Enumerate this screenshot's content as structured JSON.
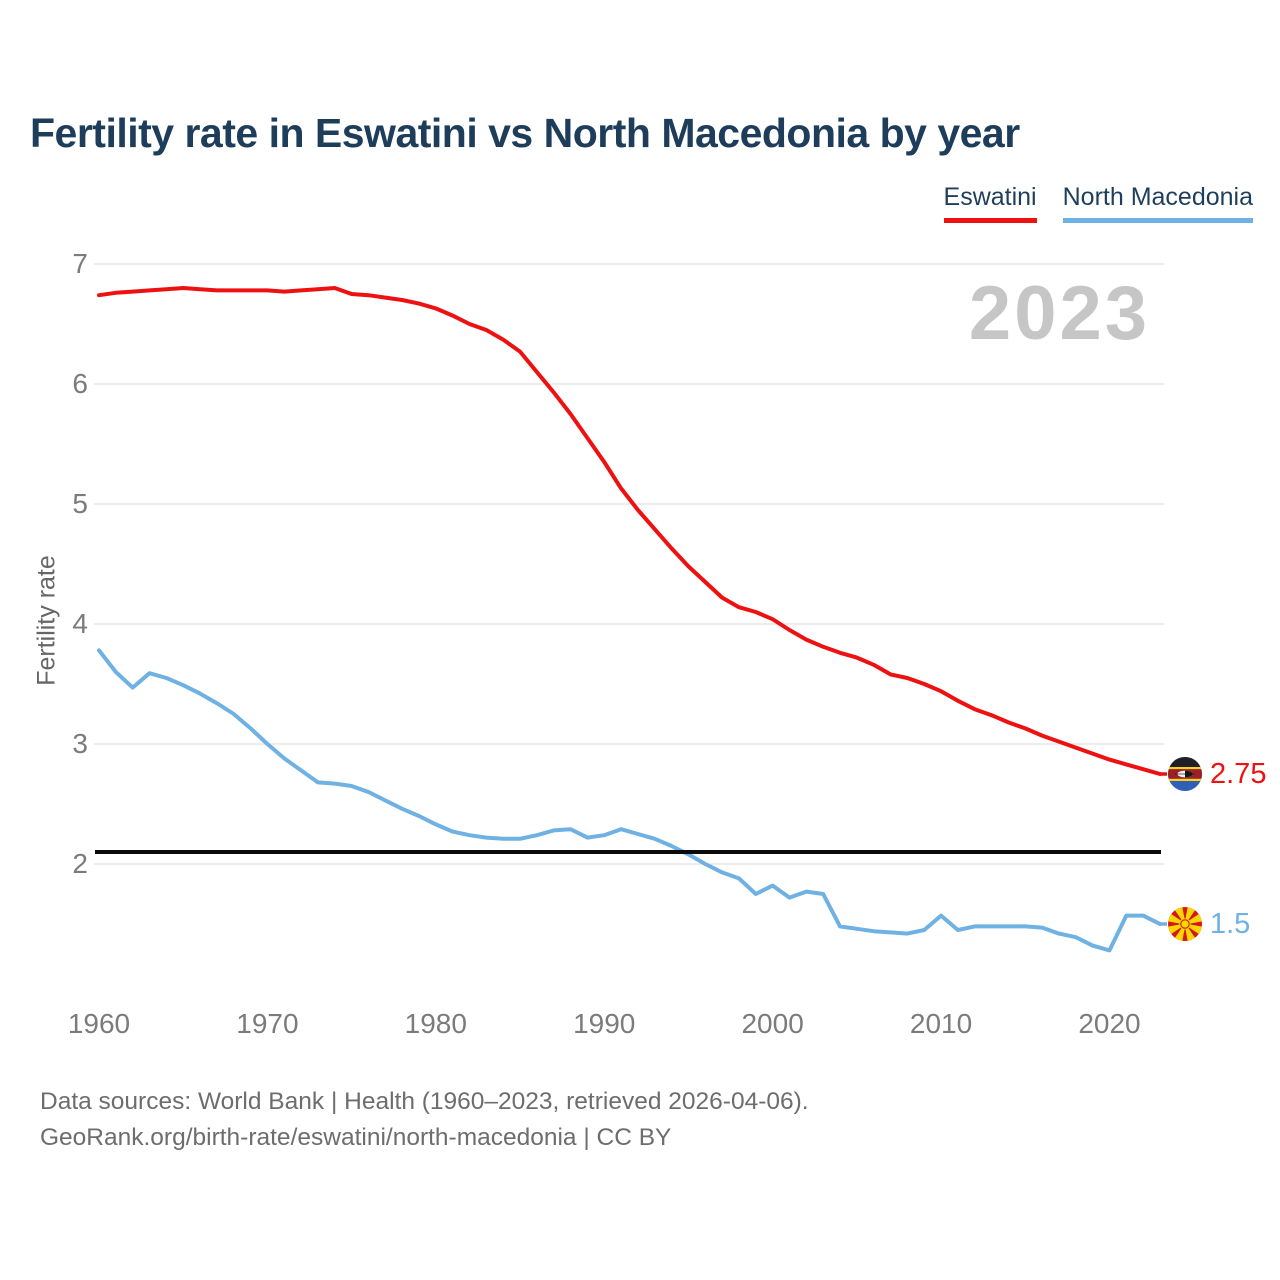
{
  "title": "Fertility rate in Eswatini vs North Macedonia by year",
  "watermark": "2023",
  "ylabel": "Fertility rate",
  "legend": [
    {
      "label": "Eswatini",
      "color": "#ed1111"
    },
    {
      "label": "North Macedonia",
      "color": "#6fb1e2"
    }
  ],
  "end_labels": [
    {
      "series": "Eswatini",
      "value": "2.75",
      "color": "#ed1111"
    },
    {
      "series": "North Macedonia",
      "value": "1.5",
      "color": "#6fb1e2"
    }
  ],
  "footer": {
    "line1": "Data sources: World Bank | Health (1960–2023, retrieved 2026-04-06).",
    "line2": "GeoRank.org/birth-rate/eswatini/north-macedonia | CC BY"
  },
  "chart_data": {
    "type": "line",
    "title": "Fertility rate in Eswatini vs North Macedonia by year",
    "xlabel": "",
    "ylabel": "Fertility rate",
    "x": [
      1960,
      1961,
      1962,
      1963,
      1964,
      1965,
      1966,
      1967,
      1968,
      1969,
      1970,
      1971,
      1972,
      1973,
      1974,
      1975,
      1976,
      1977,
      1978,
      1979,
      1980,
      1981,
      1982,
      1983,
      1984,
      1985,
      1986,
      1987,
      1988,
      1989,
      1990,
      1991,
      1992,
      1993,
      1994,
      1995,
      1996,
      1997,
      1998,
      1999,
      2000,
      2001,
      2002,
      2003,
      2004,
      2005,
      2006,
      2007,
      2008,
      2009,
      2010,
      2011,
      2012,
      2013,
      2014,
      2015,
      2016,
      2017,
      2018,
      2019,
      2020,
      2021,
      2022,
      2023
    ],
    "series": [
      {
        "name": "Eswatini",
        "color": "#ed1111",
        "values": [
          6.74,
          6.76,
          6.77,
          6.78,
          6.79,
          6.8,
          6.79,
          6.78,
          6.78,
          6.78,
          6.78,
          6.77,
          6.78,
          6.79,
          6.8,
          6.75,
          6.74,
          6.72,
          6.7,
          6.67,
          6.63,
          6.57,
          6.5,
          6.45,
          6.37,
          6.27,
          6.1,
          5.93,
          5.75,
          5.55,
          5.35,
          5.13,
          4.95,
          4.79,
          4.63,
          4.48,
          4.35,
          4.22,
          4.14,
          4.1,
          4.04,
          3.95,
          3.87,
          3.81,
          3.76,
          3.72,
          3.66,
          3.58,
          3.55,
          3.5,
          3.44,
          3.36,
          3.29,
          3.24,
          3.18,
          3.13,
          3.07,
          3.02,
          2.97,
          2.92,
          2.87,
          2.83,
          2.79,
          2.75
        ]
      },
      {
        "name": "North Macedonia",
        "color": "#6fb1e2",
        "values": [
          3.78,
          3.6,
          3.47,
          3.59,
          3.55,
          3.49,
          3.42,
          3.34,
          3.25,
          3.13,
          3.0,
          2.88,
          2.78,
          2.68,
          2.67,
          2.65,
          2.6,
          2.53,
          2.46,
          2.4,
          2.33,
          2.27,
          2.24,
          2.22,
          2.21,
          2.21,
          2.24,
          2.28,
          2.29,
          2.22,
          2.24,
          2.29,
          2.25,
          2.21,
          2.15,
          2.08,
          2.0,
          1.93,
          1.88,
          1.75,
          1.82,
          1.72,
          1.77,
          1.75,
          1.48,
          1.46,
          1.44,
          1.43,
          1.42,
          1.45,
          1.57,
          1.45,
          1.48,
          1.48,
          1.48,
          1.48,
          1.47,
          1.42,
          1.39,
          1.32,
          1.28,
          1.57,
          1.57,
          1.5
        ]
      }
    ],
    "reference_line": {
      "value": 2.1,
      "color": "#0a0a0a"
    },
    "xticks": [
      1960,
      1970,
      1980,
      1990,
      2000,
      2010,
      2020
    ],
    "yticks": [
      2,
      3,
      4,
      5,
      6,
      7
    ],
    "xlim": [
      1960,
      2023
    ],
    "ylim": [
      1.1,
      7.2
    ],
    "grid": true,
    "legend_position": "top-right"
  }
}
